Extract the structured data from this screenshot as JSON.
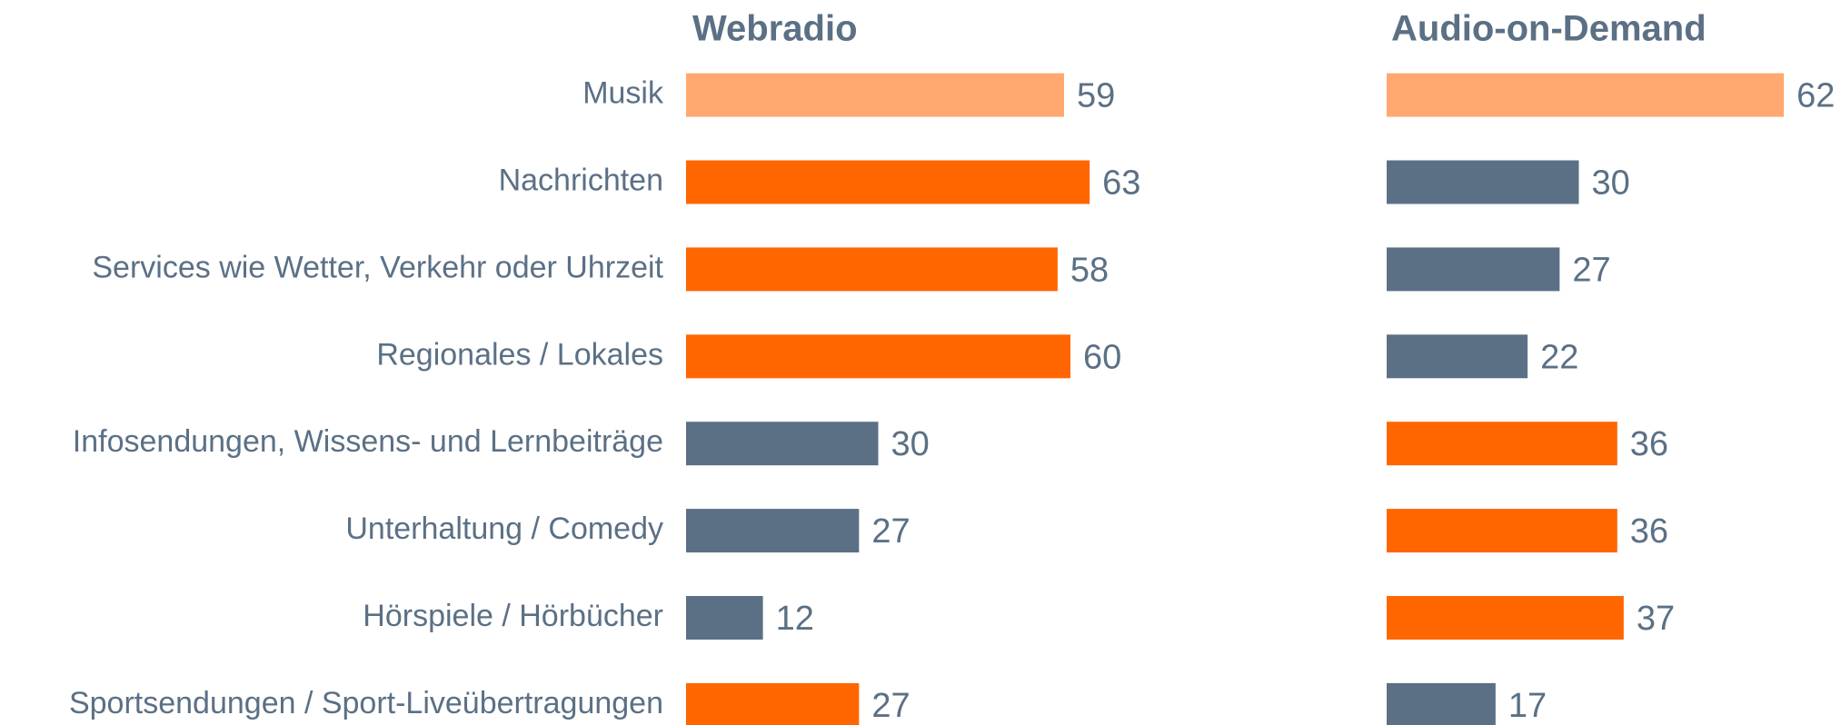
{
  "chart_data": [
    {
      "type": "bar",
      "orientation": "horizontal",
      "title": "Webradio",
      "categories": [
        "Musik",
        "Nachrichten",
        "Services wie Wetter, Verkehr oder Uhrzeit",
        "Regionales / Lokales",
        "Infosendungen, Wissens- und Lernbeiträge",
        "Unterhaltung / Comedy",
        "Hörspiele / Hörbücher",
        "Sportsendungen / Sport-Liveübertragungen"
      ],
      "values": [
        59,
        63,
        58,
        60,
        30,
        27,
        12,
        27
      ],
      "colors": [
        "#ffa870",
        "#ff6600",
        "#ff6600",
        "#ff6600",
        "#5b7085",
        "#5b7085",
        "#5b7085",
        "#ff6600"
      ]
    },
    {
      "type": "bar",
      "orientation": "horizontal",
      "title": "Audio-on-Demand",
      "values": [
        62,
        30,
        27,
        22,
        36,
        36,
        37,
        17
      ],
      "colors": [
        "#ffa870",
        "#5b7085",
        "#5b7085",
        "#5b7085",
        "#ff6600",
        "#ff6600",
        "#ff6600",
        "#5b7085"
      ]
    }
  ]
}
